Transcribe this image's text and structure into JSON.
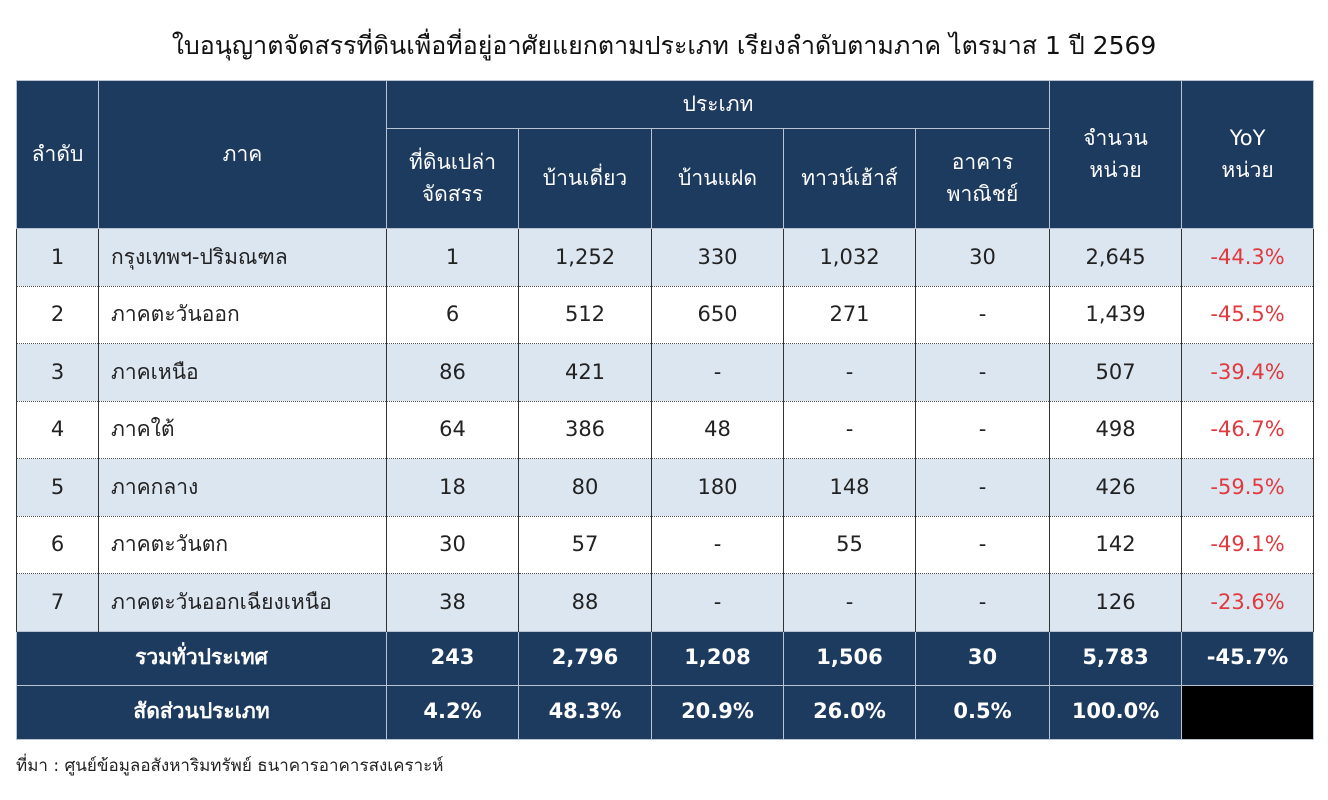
{
  "title": "ใบอนุญาตจัดสรรที่ดินเพื่อที่อยู่อาศัยแยกตามประเภท เรียงลำดับตามภาค ไตรมาส 1 ปี 2569",
  "table": {
    "header": {
      "rank": "ลำดับ",
      "region": "ภาค",
      "type_group": "ประเภท",
      "types": [
        "ที่ดินเปล่า\nจัดสรร",
        "บ้านเดี่ยว",
        "บ้านแฝด",
        "ทาวน์เฮ้าส์",
        "อาคาร\nพาณิชย์"
      ],
      "units": "จำนวน\nหน่วย",
      "yoy": "YoY\nหน่วย"
    },
    "rows": [
      [
        "1",
        "กรุงเทพฯ-ปริมณฑล",
        "1",
        "1,252",
        "330",
        "1,032",
        "30",
        "2,645",
        "-44.3%"
      ],
      [
        "2",
        "ภาคตะวันออก",
        "6",
        "512",
        "650",
        "271",
        "-",
        "1,439",
        "-45.5%"
      ],
      [
        "3",
        "ภาคเหนือ",
        "86",
        "421",
        "-",
        "-",
        "-",
        "507",
        "-39.4%"
      ],
      [
        "4",
        "ภาคใต้",
        "64",
        "386",
        "48",
        "-",
        "-",
        "498",
        "-46.7%"
      ],
      [
        "5",
        "ภาคกลาง",
        "18",
        "80",
        "180",
        "148",
        "-",
        "426",
        "-59.5%"
      ],
      [
        "6",
        "ภาคตะวันตก",
        "30",
        "57",
        "-",
        "55",
        "-",
        "142",
        "-49.1%"
      ],
      [
        "7",
        "ภาคตะวันออกเฉียงเหนือ",
        "38",
        "88",
        "-",
        "-",
        "-",
        "126",
        "-23.6%"
      ]
    ],
    "total": {
      "label": "รวมทั่วประเทศ",
      "values": [
        "243",
        "2,796",
        "1,208",
        "1,506",
        "30",
        "5,783",
        "-45.7%"
      ]
    },
    "share": {
      "label": "สัดส่วนประเภท",
      "values": [
        "4.2%",
        "48.3%",
        "20.9%",
        "26.0%",
        "0.5%",
        "100.0%"
      ]
    }
  },
  "source": "ที่มา : ศูนย์ข้อมูลอสังหาริมทรัพย์ ธนาคารอาคารสงเคราะห์"
}
